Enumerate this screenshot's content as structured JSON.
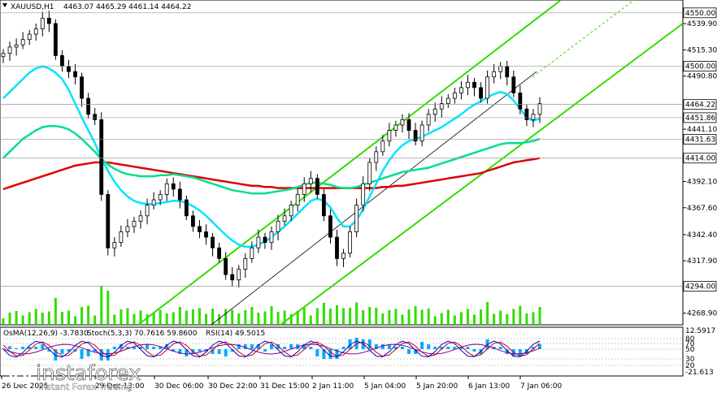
{
  "header": {
    "symbol": "XAUUSD,H1",
    "ohlc": "4463.07 4465.29 4461.14 4464.22"
  },
  "indicators_header": {
    "osma": "OsMA(12,26,9) -3.7830",
    "stoch": "Stoch(5,3,3) 70.7616 59.8600",
    "rsi": "RSI(14) 49.5015"
  },
  "colors": {
    "candle": "#000000",
    "ma_fast": "#00e5ff",
    "ma_mid": "#00e08a",
    "ma_slow": "#e00000",
    "channel": "#33dd00",
    "volume": "#33dd00",
    "osma": "#00aaff",
    "stoch_main": "#0000cc",
    "stoch_signal": "#cc0000",
    "rsi": "#800080",
    "tag_bg": "#ffffff"
  },
  "branding": {
    "name": "instaforex",
    "tagline": "Instant Forex Trading"
  },
  "chart_data": {
    "type": "candlestick",
    "price_axis": {
      "range": [
        4258,
        4562
      ],
      "ticks": [
        "4539.90",
        "4515.30",
        "4490.80",
        "4441.10",
        "4392.10",
        "4367.60",
        "4342.40",
        "4317.90",
        "4268.90"
      ]
    },
    "price_tags": [
      {
        "label": "4550.00",
        "value": 4550.0,
        "style": "boxed"
      },
      {
        "label": "4500.00",
        "value": 4500.0,
        "style": "boxed"
      },
      {
        "label": "4464.22",
        "value": 4464.22,
        "style": "current"
      },
      {
        "label": "4451.86",
        "value": 4451.86,
        "style": "boxed"
      },
      {
        "label": "4431.63",
        "value": 4431.63,
        "style": "boxed"
      },
      {
        "label": "4414.00",
        "value": 4414.0,
        "style": "boxed"
      },
      {
        "label": "4294.00",
        "value": 4294.0,
        "style": "boxed"
      }
    ],
    "time_labels": [
      "26 Dec 2025",
      "29 Dec 13:00",
      "30 Dec 06:00",
      "30 Dec 22:00",
      "31 Dec 15:00",
      "2 Jan 11:00",
      "5 Jan 04:00",
      "5 Jan 20:00",
      "6 Jan 13:00",
      "7 Jan 06:00"
    ],
    "series": {
      "close": [
        4512,
        4518,
        4520,
        4525,
        4530,
        4535,
        4545,
        4540,
        4510,
        4500,
        4495,
        4490,
        4470,
        4455,
        4450,
        4380,
        4330,
        4335,
        4345,
        4350,
        4355,
        4360,
        4370,
        4375,
        4380,
        4390,
        4385,
        4375,
        4360,
        4350,
        4345,
        4340,
        4330,
        4320,
        4305,
        4300,
        4310,
        4320,
        4330,
        4340,
        4335,
        4345,
        4355,
        4360,
        4370,
        4380,
        4390,
        4395,
        4380,
        4360,
        4340,
        4320,
        4325,
        4345,
        4370,
        4390,
        4410,
        4420,
        4430,
        4440,
        4445,
        4450,
        4440,
        4430,
        4445,
        4455,
        4460,
        4465,
        4470,
        4475,
        4480,
        4485,
        4480,
        4470,
        4490,
        4495,
        4500,
        4490,
        4475,
        4460,
        4450,
        4455,
        4465
      ],
      "ma_fast": [
        4470,
        4476,
        4482,
        4488,
        4494,
        4498,
        4500,
        4498,
        4494,
        4488,
        4478,
        4465,
        4452,
        4440,
        4428,
        4414,
        4402,
        4392,
        4384,
        4378,
        4374,
        4372,
        4371,
        4371,
        4372,
        4373,
        4374,
        4374,
        4372,
        4369,
        4365,
        4360,
        4354,
        4348,
        4342,
        4337,
        4333,
        4331,
        4331,
        4333,
        4336,
        4340,
        4345,
        4350,
        4356,
        4362,
        4368,
        4374,
        4376,
        4374,
        4368,
        4358,
        4350,
        4350,
        4356,
        4366,
        4378,
        4390,
        4402,
        4412,
        4420,
        4426,
        4430,
        4432,
        4434,
        4437,
        4440,
        4443,
        4447,
        4451,
        4455,
        4460,
        4464,
        4467,
        4471,
        4474,
        4476,
        4474,
        4468,
        4460,
        4452,
        4449,
        4451
      ],
      "ma_mid": [
        4414,
        4420,
        4426,
        4432,
        4436,
        4440,
        4443,
        4444,
        4444,
        4443,
        4441,
        4437,
        4432,
        4426,
        4420,
        4413,
        4408,
        4404,
        4401,
        4399,
        4398,
        4397,
        4397,
        4397,
        4398,
        4398,
        4399,
        4398,
        4397,
        4396,
        4394,
        4392,
        4390,
        4388,
        4386,
        4384,
        4383,
        4382,
        4381,
        4381,
        4381,
        4382,
        4383,
        4384,
        4385,
        4387,
        4389,
        4391,
        4391,
        4390,
        4389,
        4387,
        4386,
        4386,
        4387,
        4389,
        4391,
        4393,
        4395,
        4397,
        4399,
        4401,
        4402,
        4403,
        4404,
        4405,
        4407,
        4409,
        4411,
        4413,
        4415,
        4417,
        4419,
        4421,
        4423,
        4425,
        4427,
        4428,
        4428,
        4428,
        4429,
        4430,
        4432
      ],
      "ma_slow": [
        4385,
        4387,
        4389,
        4391,
        4393,
        4395,
        4397,
        4399,
        4401,
        4403,
        4405,
        4407,
        4408,
        4409,
        4410,
        4410,
        4410,
        4409,
        4408,
        4407,
        4406,
        4405,
        4404,
        4403,
        4402,
        4401,
        4400,
        4399,
        4398,
        4397,
        4396,
        4395,
        4394,
        4393,
        4392,
        4391,
        4390,
        4389,
        4388,
        4388,
        4387,
        4387,
        4386,
        4386,
        4386,
        4386,
        4386,
        4386,
        4386,
        4386,
        4386,
        4386,
        4386,
        4386,
        4386,
        4386,
        4386,
        4386,
        4387,
        4387,
        4388,
        4388,
        4389,
        4390,
        4391,
        4392,
        4393,
        4394,
        4395,
        4396,
        4397,
        4398,
        4399,
        4400,
        4402,
        4404,
        4406,
        4408,
        4410,
        4411,
        4412,
        4413,
        4414
      ]
    },
    "channel_lines": [
      {
        "name": "upper",
        "from": [
          170,
          4258
        ],
        "to": [
          690,
          4562
        ]
      },
      {
        "name": "lower",
        "from": [
          345,
          4258
        ],
        "to": [
          840,
          4540
        ]
      },
      {
        "name": "middle",
        "from": [
          260,
          4258
        ],
        "to": [
          660,
          4495
        ]
      }
    ],
    "osma_axis": {
      "top": "12.5917",
      "bottom": "-21.613"
    },
    "stoch_levels": [
      "80",
      "70",
      "50",
      "30",
      "20"
    ]
  }
}
